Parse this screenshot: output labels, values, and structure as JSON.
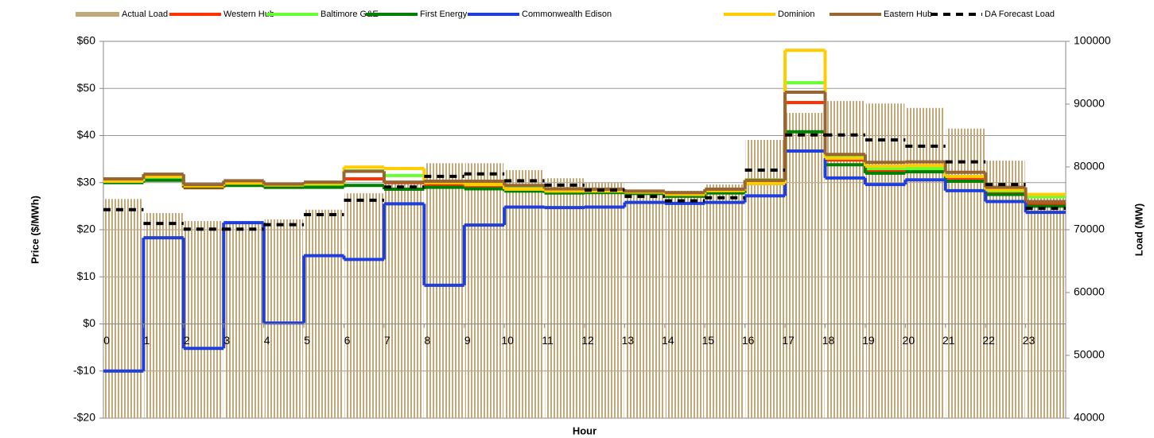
{
  "chart_data": {
    "type": "line",
    "xlabel": "Hour",
    "ylabel": "Price ($/MWh)",
    "y2label": "Load (MW)",
    "x": [
      0,
      1,
      2,
      3,
      4,
      5,
      6,
      7,
      8,
      9,
      10,
      11,
      12,
      13,
      14,
      15,
      16,
      17,
      18,
      19,
      20,
      21,
      22,
      23
    ],
    "xlim": [
      0,
      24
    ],
    "ylim": [
      -20,
      60
    ],
    "yticks": [
      {
        "value": -20,
        "label": "-$20"
      },
      {
        "value": -10,
        "label": "-$10"
      },
      {
        "value": 0,
        "label": "$0"
      },
      {
        "value": 10,
        "label": "$10"
      },
      {
        "value": 20,
        "label": "$20"
      },
      {
        "value": 30,
        "label": "$30"
      },
      {
        "value": 40,
        "label": "$40"
      },
      {
        "value": 50,
        "label": "$50"
      },
      {
        "value": 60,
        "label": "$60"
      }
    ],
    "y2lim": [
      40000,
      100000
    ],
    "y2ticks": [
      40000,
      50000,
      60000,
      70000,
      80000,
      90000,
      100000
    ],
    "grid": true,
    "legend": "top",
    "series": [
      {
        "name": "Actual Load",
        "type": "bar",
        "axis": "y2",
        "color": "#c3a97a",
        "values": [
          74900,
          72650,
          71400,
          71400,
          71650,
          73200,
          75800,
          77700,
          80600,
          80600,
          79500,
          78200,
          77500,
          76200,
          76200,
          77200,
          84300,
          88600,
          90500,
          90100,
          89400,
          86100,
          81000,
          75700
        ]
      },
      {
        "name": "Western Hub",
        "color": "#ff3300",
        "values": [
          30.2,
          30.6,
          28.9,
          29.5,
          29,
          29.4,
          30.8,
          30,
          29.6,
          29.3,
          28.7,
          28.1,
          28.2,
          27.9,
          27.2,
          28.2,
          30.3,
          47,
          34.8,
          32.5,
          32.7,
          31,
          28,
          25.5
        ]
      },
      {
        "name": "Baltimore G&E",
        "color": "#66ff33",
        "values": [
          30.5,
          31,
          29.2,
          29.9,
          29.3,
          29.6,
          32.5,
          31.5,
          30.2,
          29.6,
          28.8,
          28.3,
          28.3,
          28,
          27.4,
          28.3,
          30.6,
          51.2,
          35.5,
          33,
          33,
          31.3,
          28.3,
          27
        ]
      },
      {
        "name": "First Energy",
        "color": "#008000",
        "values": [
          30,
          30.5,
          29.1,
          29.4,
          29,
          29,
          29.4,
          28.6,
          29,
          28.7,
          28.2,
          27.8,
          27.9,
          27.7,
          27.1,
          27.8,
          29.8,
          40.8,
          33.8,
          32,
          32.3,
          30.3,
          27.5,
          25
        ]
      },
      {
        "name": "Commonwealth Edison",
        "color": "#1f3fdc",
        "values": [
          -10,
          18.3,
          -5.2,
          21.5,
          0.2,
          14.5,
          13.7,
          25.5,
          8.2,
          21,
          24.8,
          24.7,
          24.8,
          25.8,
          25.6,
          25.8,
          27.2,
          36.7,
          31,
          29.6,
          30.6,
          28.3,
          26,
          23.7
        ]
      },
      {
        "name": "Dominion",
        "color": "#ffcc00",
        "values": [
          30.3,
          31.3,
          29.3,
          29.9,
          29.5,
          29.8,
          33.3,
          33,
          30,
          29.6,
          28.6,
          28.2,
          28.2,
          28,
          27.5,
          28.3,
          29.8,
          58.1,
          35.2,
          33.5,
          33.6,
          31.3,
          28.5,
          27.5
        ]
      },
      {
        "name": "Eastern Hub",
        "color": "#996633",
        "values": [
          30.8,
          31.8,
          29.6,
          30.4,
          29.7,
          30.1,
          32.4,
          30.1,
          30.3,
          30.3,
          29.4,
          28.7,
          28.6,
          28.2,
          27.9,
          28.6,
          30.5,
          49.2,
          36,
          34.3,
          34.4,
          32.2,
          29,
          26
        ]
      },
      {
        "name": "DA Forecast Load",
        "axis": "y2",
        "dashed": true,
        "color": "#000000",
        "values": [
          73200,
          71000,
          70100,
          70100,
          70800,
          72400,
          74700,
          76800,
          78500,
          78900,
          77800,
          77100,
          76300,
          75300,
          74600,
          75100,
          79500,
          85100,
          85100,
          84300,
          83300,
          80800,
          77200,
          73400
        ]
      }
    ]
  }
}
